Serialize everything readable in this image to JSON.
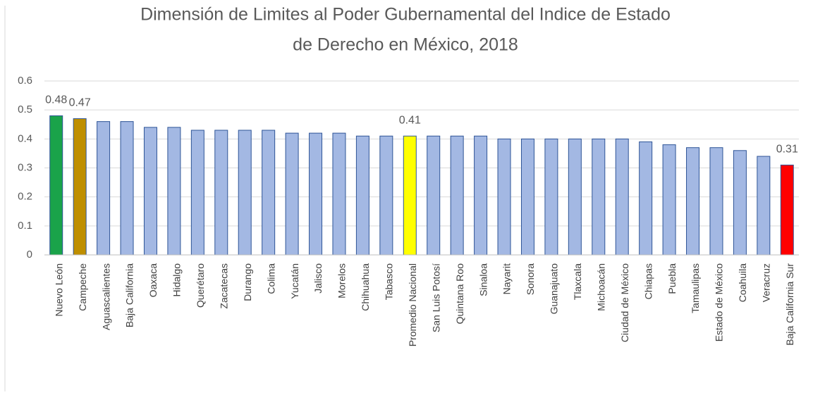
{
  "chart_data": {
    "type": "bar",
    "title": [
      "Dimensión de Limites al Poder Gubernamental del Indice de Estado",
      "de Derecho en México, 2018"
    ],
    "categories": [
      "Nuevo León",
      "Campeche",
      "Aguascalientes",
      "Baja California",
      "Oaxaca",
      "Hidalgo",
      "Querétaro",
      "Zacatecas",
      "Durango",
      "Colima",
      "Yucatán",
      "Jalisco",
      "Morelos",
      "Chihuahua",
      "Tabasco",
      "Promedio Nacional",
      "San Luis Potosí",
      "Quintana Roo",
      "Sinaloa",
      "Nayarit",
      "Sonora",
      "Guanajuato",
      "Tlaxcala",
      "Michoacán",
      "Ciudad de México",
      "Chiapas",
      "Puebla",
      "Tamaulipas",
      "Estado de México",
      "Coahuila",
      "Veracruz",
      "Baja California Sur"
    ],
    "values": [
      0.48,
      0.47,
      0.46,
      0.46,
      0.44,
      0.44,
      0.43,
      0.43,
      0.43,
      0.43,
      0.42,
      0.42,
      0.42,
      0.41,
      0.41,
      0.41,
      0.41,
      0.41,
      0.41,
      0.4,
      0.4,
      0.4,
      0.4,
      0.4,
      0.4,
      0.39,
      0.38,
      0.37,
      0.37,
      0.36,
      0.34,
      0.31
    ],
    "value_labels": [
      "0.48",
      "0.47",
      null,
      null,
      null,
      null,
      null,
      null,
      null,
      null,
      null,
      null,
      null,
      null,
      null,
      "0.41",
      null,
      null,
      null,
      null,
      null,
      null,
      null,
      null,
      null,
      null,
      null,
      null,
      null,
      null,
      null,
      "0.31"
    ],
    "colors": [
      "#1aa34a",
      "#bf8f00",
      "#a3b8e3",
      "#a3b8e3",
      "#a3b8e3",
      "#a3b8e3",
      "#a3b8e3",
      "#a3b8e3",
      "#a3b8e3",
      "#a3b8e3",
      "#a3b8e3",
      "#a3b8e3",
      "#a3b8e3",
      "#a3b8e3",
      "#a3b8e3",
      "#ffff00",
      "#a3b8e3",
      "#a3b8e3",
      "#a3b8e3",
      "#a3b8e3",
      "#a3b8e3",
      "#a3b8e3",
      "#a3b8e3",
      "#a3b8e3",
      "#a3b8e3",
      "#a3b8e3",
      "#a3b8e3",
      "#a3b8e3",
      "#a3b8e3",
      "#a3b8e3",
      "#a3b8e3",
      "#ff0000"
    ],
    "ylim": [
      0,
      0.6
    ],
    "yticks": [
      0,
      0.1,
      0.2,
      0.3,
      0.4,
      0.5,
      0.6
    ],
    "grid": true
  }
}
